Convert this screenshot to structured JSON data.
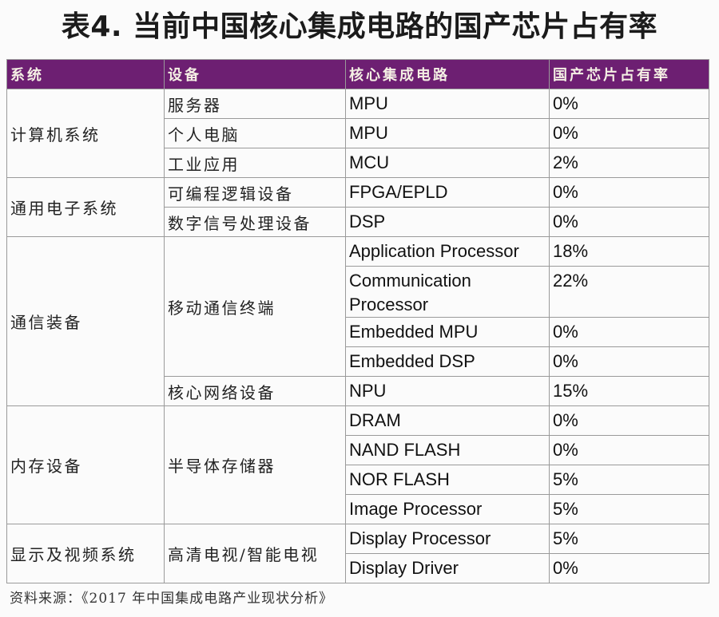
{
  "title": "表4. 当前中国核心集成电路的国产芯片占有率",
  "colors": {
    "header_bg": "#6d1f72",
    "header_text": "#f4efe4",
    "border": "#9a9a9a"
  },
  "table": {
    "headers": {
      "system": "系统",
      "device": "设备",
      "circuit": "核心集成电路",
      "share": "国产芯片占有率"
    },
    "groups": [
      {
        "system": "计算机系统",
        "devices": [
          {
            "name": "服务器",
            "circuits": [
              {
                "name": "MPU",
                "share": "0%"
              }
            ]
          },
          {
            "name": "个人电脑",
            "circuits": [
              {
                "name": "MPU",
                "share": "0%"
              }
            ]
          },
          {
            "name": "工业应用",
            "circuits": [
              {
                "name": "MCU",
                "share": "2%"
              }
            ]
          }
        ]
      },
      {
        "system": "通用电子系统",
        "devices": [
          {
            "name": "可编程逻辑设备",
            "circuits": [
              {
                "name": "FPGA/EPLD",
                "share": "0%"
              }
            ]
          },
          {
            "name": "数字信号处理设备",
            "circuits": [
              {
                "name": "DSP",
                "share": "0%"
              }
            ]
          }
        ]
      },
      {
        "system": "通信装备",
        "devices": [
          {
            "name": "移动通信终端",
            "circuits": [
              {
                "name": "Application Processor",
                "share": "18%"
              },
              {
                "name": "Communication Processor",
                "share": "22%"
              },
              {
                "name": "Embedded MPU",
                "share": "0%"
              },
              {
                "name": "Embedded DSP",
                "share": "0%"
              }
            ]
          },
          {
            "name": "核心网络设备",
            "circuits": [
              {
                "name": "NPU",
                "share": "15%"
              }
            ]
          }
        ]
      },
      {
        "system": "内存设备",
        "devices": [
          {
            "name": "半导体存储器",
            "circuits": [
              {
                "name": "DRAM",
                "share": "0%"
              },
              {
                "name": "NAND FLASH",
                "share": "0%"
              },
              {
                "name": "NOR FLASH",
                "share": "5%"
              },
              {
                "name": "Image Processor",
                "share": "5%"
              }
            ]
          }
        ]
      },
      {
        "system": "显示及视频系统",
        "devices": [
          {
            "name": "高清电视/智能电视",
            "circuits": [
              {
                "name": "Display Processor",
                "share": "5%"
              },
              {
                "name": "Display Driver",
                "share": "0%"
              }
            ]
          }
        ]
      }
    ]
  },
  "source": "资料来源：《2017 年中国集成电路产业现状分析》"
}
